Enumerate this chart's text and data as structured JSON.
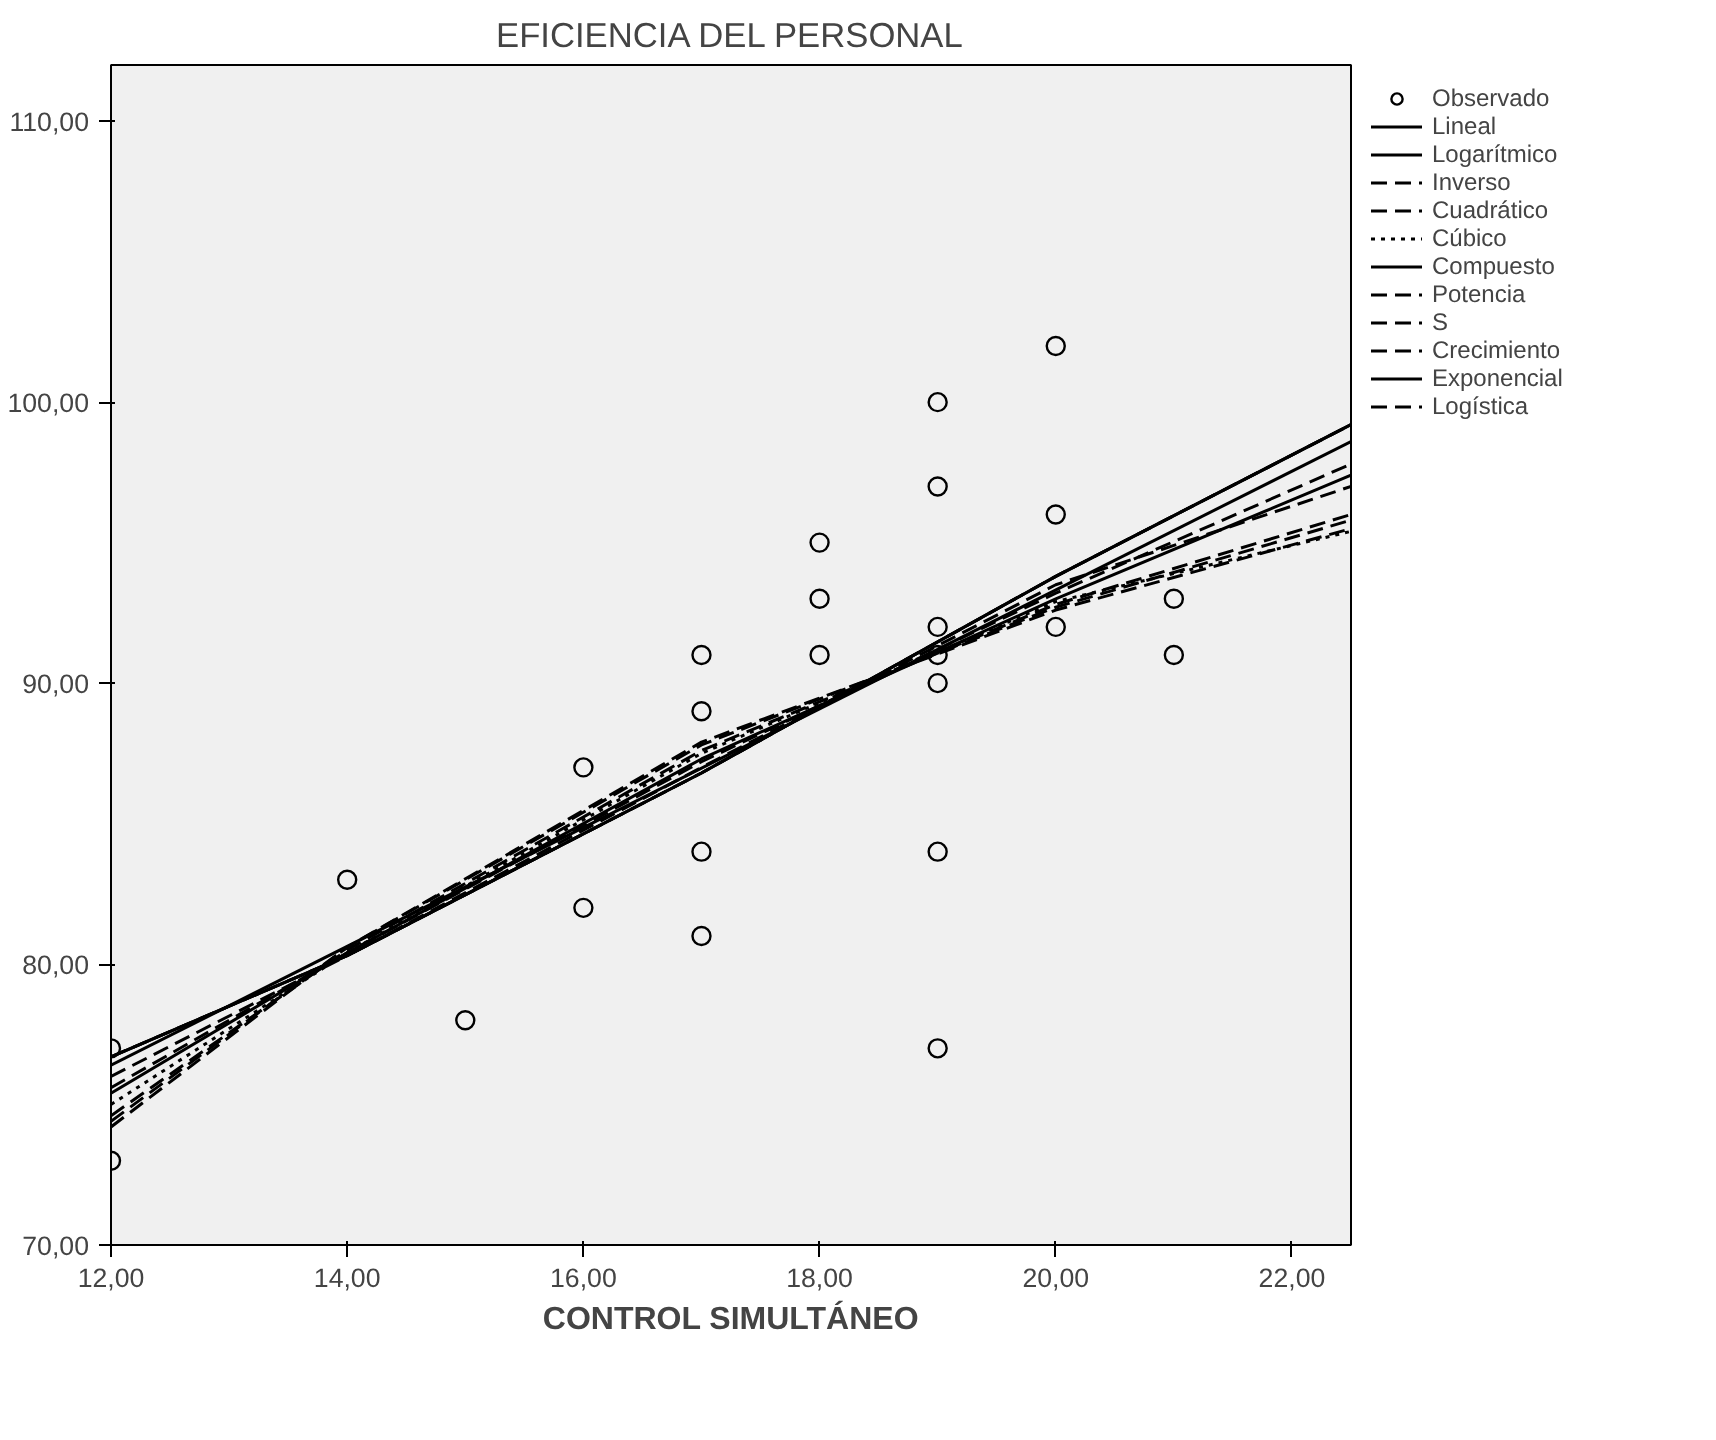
{
  "chart_data": {
    "type": "line",
    "title": "EFICIENCIA DEL PERSONAL",
    "xlabel": "CONTROL SIMULTÁNEO",
    "xlim": [
      12,
      22.5
    ],
    "ylim": [
      70,
      112
    ],
    "xticks": [
      {
        "value": 12,
        "label": "12,00"
      },
      {
        "value": 14,
        "label": "14,00"
      },
      {
        "value": 16,
        "label": "16,00"
      },
      {
        "value": 18,
        "label": "18,00"
      },
      {
        "value": 20,
        "label": "20,00"
      },
      {
        "value": 22,
        "label": "22,00"
      }
    ],
    "yticks": [
      {
        "value": 70,
        "label": "70,00"
      },
      {
        "value": 80,
        "label": "80,00"
      },
      {
        "value": 90,
        "label": "90,00"
      },
      {
        "value": 100,
        "label": "100,00"
      },
      {
        "value": 110,
        "label": "110,00"
      }
    ],
    "grid": false,
    "legend": "right",
    "series": [
      {
        "name": "Observado",
        "type": "scatter",
        "marker": "circle",
        "color": "#000000",
        "x": [
          12,
          12,
          14,
          15,
          16,
          16,
          17,
          17,
          17,
          17,
          18,
          18,
          18,
          19,
          19,
          19,
          19,
          19,
          19,
          19,
          20,
          20,
          20,
          21,
          21
        ],
        "values": [
          77,
          73,
          83,
          78,
          87,
          82,
          91,
          89,
          84,
          81,
          95,
          93,
          91,
          100,
          97,
          92,
          91,
          90,
          84,
          77,
          102,
          96,
          92,
          93,
          91
        ]
      },
      {
        "name": "Lineal",
        "color": "#000000",
        "line_style": "solid",
        "x": [
          12,
          22.5
        ],
        "values": [
          76.4,
          98.6
        ]
      },
      {
        "name": "Logarítmico",
        "color": "#000000",
        "line_style": "solid",
        "x": [
          12,
          14,
          17,
          20,
          22.5
        ],
        "values": [
          75.4,
          80.4,
          87.3,
          93.0,
          97.4
        ]
      },
      {
        "name": "Inverso",
        "color": "#000000",
        "line_style": "dashed",
        "x": [
          12,
          14,
          17,
          20,
          22.5
        ],
        "values": [
          74.2,
          80.6,
          87.9,
          92.6,
          95.5
        ]
      },
      {
        "name": "Cuadrático",
        "color": "#000000",
        "line_style": "dashed",
        "x": [
          12,
          14,
          17,
          20,
          22.5
        ],
        "values": [
          74.6,
          80.5,
          87.6,
          92.8,
          96.0
        ]
      },
      {
        "name": "Cúbico",
        "color": "#000000",
        "line_style": "dotted",
        "x": [
          12,
          14,
          17,
          20,
          22.5
        ],
        "values": [
          75.0,
          80.4,
          87.5,
          92.9,
          95.4
        ]
      },
      {
        "name": "Compuesto",
        "color": "#000000",
        "line_style": "solid",
        "x": [
          12,
          14,
          17,
          20,
          22.5
        ],
        "values": [
          76.7,
          80.3,
          86.8,
          93.8,
          99.2
        ]
      },
      {
        "name": "Potencia",
        "color": "#000000",
        "line_style": "dashed",
        "x": [
          12,
          14,
          17,
          20,
          22.5
        ],
        "values": [
          75.6,
          80.4,
          87.2,
          93.2,
          97.8
        ]
      },
      {
        "name": "S",
        "color": "#000000",
        "line_style": "dashed",
        "x": [
          12,
          14,
          17,
          20,
          22.5
        ],
        "values": [
          74.4,
          80.6,
          87.8,
          92.7,
          95.8
        ]
      },
      {
        "name": "Crecimiento",
        "color": "#000000",
        "line_style": "dashed",
        "x": [
          12,
          14,
          17,
          20,
          22.5
        ],
        "values": [
          76.7,
          80.3,
          86.8,
          93.8,
          99.2
        ]
      },
      {
        "name": "Exponencial",
        "color": "#000000",
        "line_style": "solid",
        "x": [
          12,
          14,
          17,
          20,
          22.5
        ],
        "values": [
          76.7,
          80.3,
          86.8,
          93.8,
          99.2
        ]
      },
      {
        "name": "Logística",
        "color": "#000000",
        "line_style": "dashed",
        "x": [
          12,
          14,
          17,
          20,
          22.5
        ],
        "values": [
          76.0,
          80.3,
          87.0,
          93.5,
          97.0
        ]
      }
    ]
  }
}
